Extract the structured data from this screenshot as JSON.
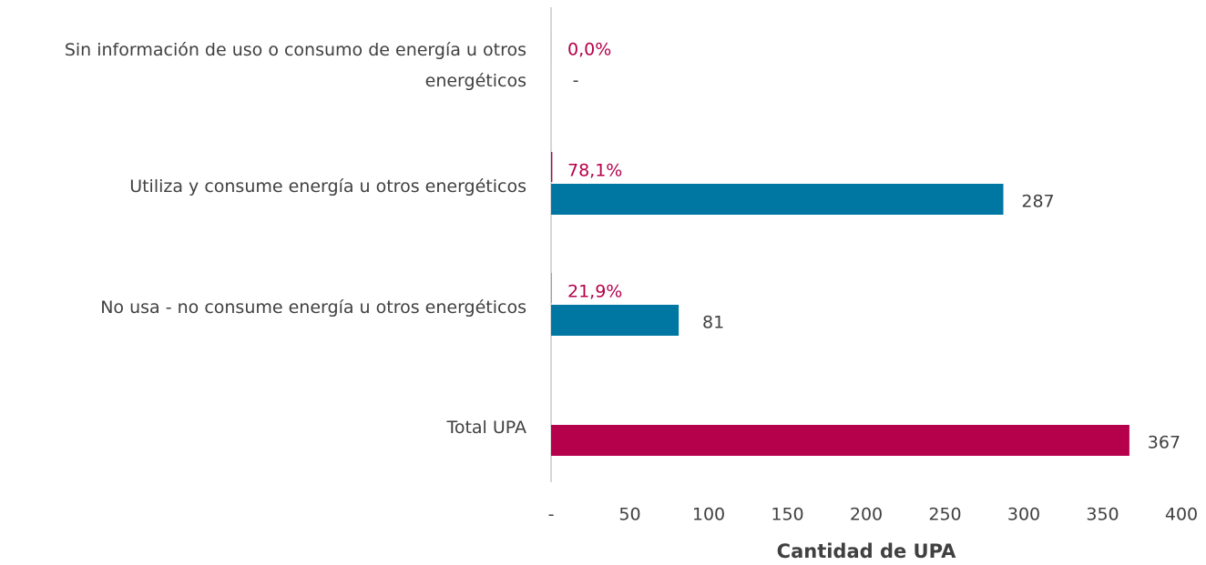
{
  "chart_data": {
    "type": "bar",
    "orientation": "horizontal",
    "categories": [
      "Sin información de uso o consumo de energía u otros energéticos",
      "Utiliza y consume energía u otros energéticos",
      "No usa - no consume energía u otros energéticos",
      "Total UPA"
    ],
    "series": [
      {
        "name": "Porcentaje",
        "color": "#b5004b",
        "values": [
          0.0,
          0.781,
          0.219,
          null
        ],
        "value_labels": [
          "0,0%",
          "78,1%",
          "21,9%",
          null
        ]
      },
      {
        "name": "Cantidad",
        "colors": [
          "#0077a3",
          "#0077a3",
          "#0077a3",
          "#b5004b"
        ],
        "values": [
          0,
          287,
          81,
          367
        ],
        "value_labels": [
          "-",
          "287",
          "81",
          "367"
        ]
      }
    ],
    "xlim": [
      0,
      400
    ],
    "xticks": [
      {
        "value": 0,
        "label": "-"
      },
      50,
      100,
      150,
      200,
      250,
      300,
      350,
      400
    ],
    "xlabel": "Cantidad de UPA"
  }
}
